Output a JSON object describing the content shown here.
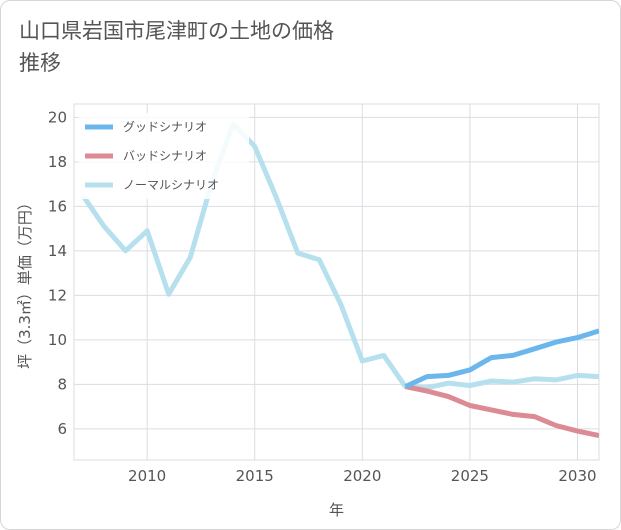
{
  "chart_data": {
    "type": "line",
    "title": "山口県岩国市尾津町の土地の価格推移",
    "xlabel": "年",
    "ylabel": "坪（3.3㎡）単価（万円）",
    "xlim": [
      2006.6,
      2031
    ],
    "ylim": [
      4.6,
      20.6
    ],
    "x_ticks": [
      2010,
      2015,
      2020,
      2025,
      2030
    ],
    "y_ticks": [
      6,
      8,
      10,
      12,
      14,
      16,
      18,
      20
    ],
    "grid": true,
    "legend_position": "top-left",
    "series": [
      {
        "name": "グッドシナリオ",
        "color": "#6cb6ee",
        "x": [
          2022,
          2023,
          2024,
          2025,
          2026,
          2027,
          2028,
          2029,
          2030,
          2031
        ],
        "values": [
          7.9,
          8.35,
          8.4,
          8.65,
          9.2,
          9.3,
          9.6,
          9.9,
          10.1,
          10.4
        ]
      },
      {
        "name": "バッドシナリオ",
        "color": "#dc8a93",
        "x": [
          2022,
          2023,
          2024,
          2025,
          2026,
          2027,
          2028,
          2029,
          2030,
          2031
        ],
        "values": [
          7.9,
          7.7,
          7.45,
          7.05,
          6.85,
          6.65,
          6.55,
          6.15,
          5.9,
          5.7
        ]
      },
      {
        "name": "ノーマルシナリオ",
        "color": "#b7e0ee",
        "x": [
          2007,
          2008,
          2009,
          2010,
          2011,
          2012,
          2013,
          2014,
          2015,
          2016,
          2017,
          2018,
          2019,
          2020,
          2021,
          2022,
          2023,
          2024,
          2025,
          2026,
          2027,
          2028,
          2029,
          2030,
          2031
        ],
        "values": [
          16.5,
          15.1,
          14.0,
          14.9,
          12.05,
          13.7,
          17.05,
          19.7,
          18.7,
          16.4,
          13.9,
          13.6,
          11.6,
          9.05,
          9.3,
          7.9,
          7.85,
          8.05,
          7.95,
          8.15,
          8.1,
          8.25,
          8.2,
          8.4,
          8.35
        ]
      }
    ]
  }
}
